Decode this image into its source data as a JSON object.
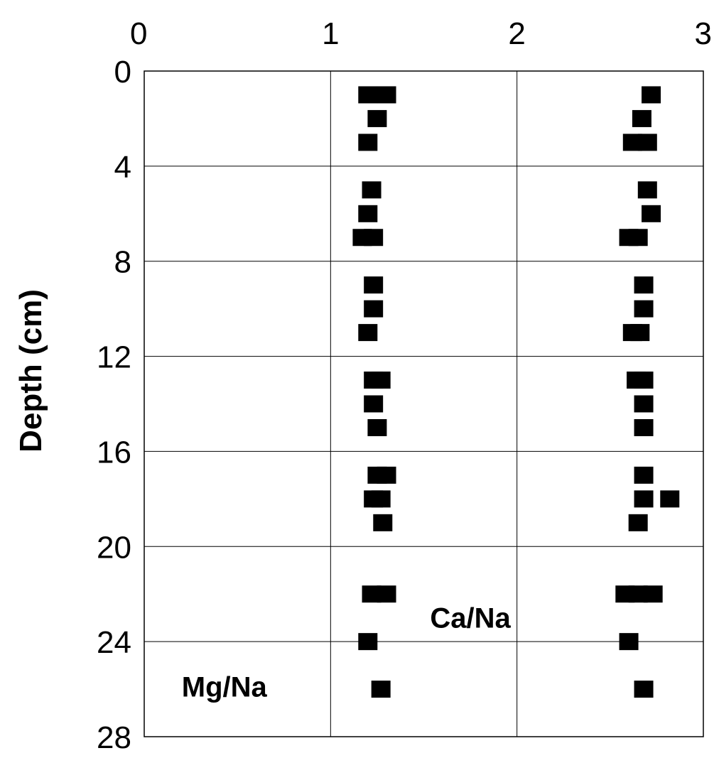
{
  "chart_data": {
    "type": "scatter",
    "title": "",
    "xlabel": "",
    "ylabel": "Depth (cm)",
    "xlim": [
      0,
      3
    ],
    "ylim": [
      28,
      0
    ],
    "x_ticks": [
      "0",
      "1",
      "2",
      "3"
    ],
    "y_ticks": [
      "0",
      "4",
      "8",
      "12",
      "16",
      "20",
      "24",
      "28"
    ],
    "x_tick_values": [
      0,
      1,
      2,
      3
    ],
    "y_tick_values": [
      0,
      4,
      8,
      12,
      16,
      20,
      24,
      28
    ],
    "x_axis_position": "top",
    "grid": true,
    "marker": "square",
    "marker_color": "#000000",
    "series": [
      {
        "label": "Mg/Na",
        "points": [
          {
            "x": 1.2,
            "y": 1.0
          },
          {
            "x": 1.3,
            "y": 1.0
          },
          {
            "x": 1.25,
            "y": 2.0
          },
          {
            "x": 1.2,
            "y": 3.0
          },
          {
            "x": 1.22,
            "y": 5.0
          },
          {
            "x": 1.2,
            "y": 6.0
          },
          {
            "x": 1.17,
            "y": 7.0
          },
          {
            "x": 1.23,
            "y": 7.0
          },
          {
            "x": 1.23,
            "y": 9.0
          },
          {
            "x": 1.23,
            "y": 10.0
          },
          {
            "x": 1.2,
            "y": 11.0
          },
          {
            "x": 1.23,
            "y": 13.0
          },
          {
            "x": 1.27,
            "y": 13.0
          },
          {
            "x": 1.23,
            "y": 14.0
          },
          {
            "x": 1.25,
            "y": 15.0
          },
          {
            "x": 1.25,
            "y": 17.0
          },
          {
            "x": 1.3,
            "y": 17.0
          },
          {
            "x": 1.23,
            "y": 18.0
          },
          {
            "x": 1.27,
            "y": 18.0
          },
          {
            "x": 1.28,
            "y": 19.0
          },
          {
            "x": 1.22,
            "y": 22.0
          },
          {
            "x": 1.3,
            "y": 22.0
          },
          {
            "x": 1.2,
            "y": 24.0
          },
          {
            "x": 1.27,
            "y": 26.0
          }
        ]
      },
      {
        "label": "Ca/Na",
        "points": [
          {
            "x": 2.72,
            "y": 1.0
          },
          {
            "x": 2.67,
            "y": 2.0
          },
          {
            "x": 2.62,
            "y": 3.0
          },
          {
            "x": 2.7,
            "y": 3.0
          },
          {
            "x": 2.7,
            "y": 5.0
          },
          {
            "x": 2.72,
            "y": 6.0
          },
          {
            "x": 2.6,
            "y": 7.0
          },
          {
            "x": 2.65,
            "y": 7.0
          },
          {
            "x": 2.68,
            "y": 9.0
          },
          {
            "x": 2.68,
            "y": 10.0
          },
          {
            "x": 2.62,
            "y": 11.0
          },
          {
            "x": 2.66,
            "y": 11.0
          },
          {
            "x": 2.64,
            "y": 13.0
          },
          {
            "x": 2.68,
            "y": 13.0
          },
          {
            "x": 2.68,
            "y": 14.0
          },
          {
            "x": 2.68,
            "y": 15.0
          },
          {
            "x": 2.68,
            "y": 17.0
          },
          {
            "x": 2.68,
            "y": 18.0
          },
          {
            "x": 2.82,
            "y": 18.0
          },
          {
            "x": 2.65,
            "y": 19.0
          },
          {
            "x": 2.58,
            "y": 22.0
          },
          {
            "x": 2.65,
            "y": 22.0
          },
          {
            "x": 2.73,
            "y": 22.0
          },
          {
            "x": 2.6,
            "y": 24.0
          },
          {
            "x": 2.68,
            "y": 26.0
          }
        ]
      }
    ],
    "annotations": [
      {
        "text": "Mg/Na",
        "anchor_x": 0.43,
        "anchor_y": 25.9
      },
      {
        "text": "Ca/Na",
        "anchor_x": 1.75,
        "anchor_y": 23.0
      }
    ]
  }
}
